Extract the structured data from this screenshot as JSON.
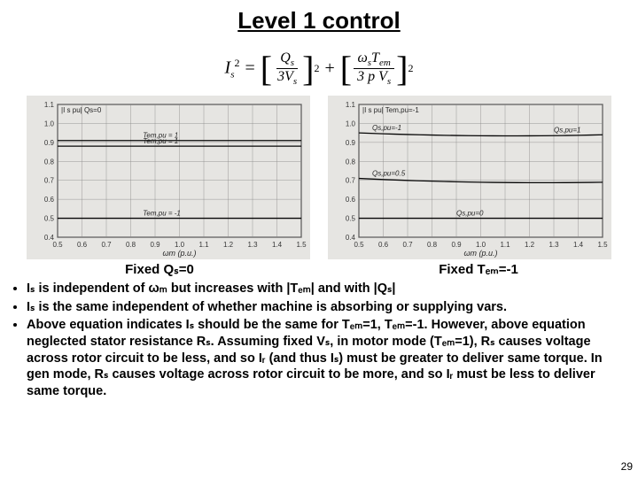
{
  "title": "Level 1 control",
  "equation": {
    "lhs": "I",
    "lhs_sub": "s",
    "lhs_sup": "2",
    "term1_num": "Q",
    "term1_num_sub": "s",
    "term1_den": "3V",
    "term1_den_sub": "s",
    "term2_num_a": "ω",
    "term2_num_a_sub": "s",
    "term2_num_b": "T",
    "term2_num_b_sub": "em",
    "term2_den": "3 p V",
    "term2_den_sub": "s",
    "exp": "2"
  },
  "chart_left": {
    "ylabel": "|I s pu| Qs=0",
    "xlabel": "ωm (p.u.)",
    "xlim": [
      0.5,
      1.5
    ],
    "ylim": [
      0.4,
      1.1
    ],
    "xticks": [
      0.5,
      0.6,
      0.7,
      0.8,
      0.9,
      1.0,
      1.1,
      1.2,
      1.3,
      1.4,
      1.5
    ],
    "yticks": [
      0.4,
      0.5,
      0.6,
      0.7,
      0.8,
      0.9,
      1.0,
      1.1
    ],
    "grid_color": "#888888",
    "background_color": "#f0efec",
    "line_color": "#000000",
    "series": [
      {
        "label": "Tem,pu = 1",
        "y": 0.91
      },
      {
        "label": "Tem,pu = 1",
        "y": 0.88
      },
      {
        "label": "Tem,pu = -1",
        "y": 0.5
      }
    ]
  },
  "chart_right": {
    "ylabel": "|I s pu| Tem,pu=-1",
    "xlabel": "ωm (p.u.)",
    "xlim": [
      0.5,
      1.5
    ],
    "ylim": [
      0.4,
      1.1
    ],
    "xticks": [
      0.5,
      0.6,
      0.7,
      0.8,
      0.9,
      1.0,
      1.1,
      1.2,
      1.3,
      1.4,
      1.5
    ],
    "yticks": [
      0.4,
      0.5,
      0.6,
      0.7,
      0.8,
      0.9,
      1.0,
      1.1
    ],
    "grid_color": "#888888",
    "background_color": "#f0efec",
    "line_color": "#000000",
    "series_pairs": [
      {
        "label_l": "Qs,pu=-1",
        "yl": 0.95,
        "label_r": "Qs,pu=1",
        "yr": 0.94
      },
      {
        "label_l": "Qs,pu=0.5",
        "yl": 0.71,
        "label_r": "",
        "yr": 0.69
      }
    ],
    "flat_series": {
      "label": "Qs,pu=0",
      "y": 0.5
    }
  },
  "caption_left": "Fixed Qₛ=0",
  "caption_right": "Fixed Tₑₘ=-1",
  "bullets": [
    "Iₛ is independent of ωₘ but increases with |Tₑₘ| and with |Qₛ|",
    "Iₛ is the same independent of whether machine is absorbing or supplying vars.",
    "Above equation indicates Iₛ should be the same for Tₑₘ=1, Tₑₘ=-1. However, above equation neglected stator resistance Rₛ. Assuming fixed Vₛ, in motor mode (Tₑₘ=1), Rₛ causes voltage across rotor circuit to be less, and so Iᵣ (and thus Iₛ) must be greater to deliver same torque. In gen mode, Rₛ causes voltage across rotor circuit to be more, and so Iᵣ must be less to deliver same torque."
  ],
  "pagenum": "29"
}
